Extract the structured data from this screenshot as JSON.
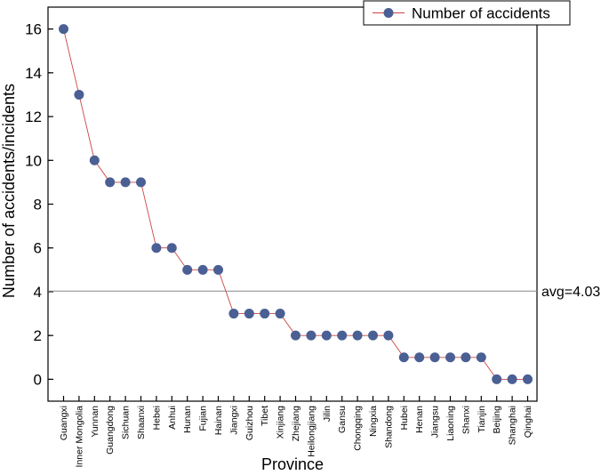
{
  "chart_data": {
    "type": "line",
    "title": "",
    "xlabel": "Province",
    "ylabel": "Number of accidents/incidents",
    "ylim": [
      -1,
      17
    ],
    "yticks": [
      0,
      2,
      4,
      6,
      8,
      10,
      12,
      14,
      16
    ],
    "legend_position": "top-right",
    "categories": [
      "Guangxi",
      "Inner Mongolia",
      "Yunnan",
      "Guangdong",
      "Sichuan",
      "Shaanxi",
      "Hebei",
      "Anhui",
      "Hunan",
      "Fujian",
      "Hainan",
      "Jiangxi",
      "Guizhou",
      "Tibet",
      "Xinjiang",
      "Zhejiang",
      "Heilongjiang",
      "Jilin",
      "Gansu",
      "Chongqing",
      "Ningxia",
      "Shandong",
      "Hubei",
      "Henan",
      "Jiangsu",
      "Liaoning",
      "Shanxi",
      "Tianjin",
      "Beijing",
      "Shanghai",
      "Qinghai"
    ],
    "series": [
      {
        "name": "Number of accidents",
        "values": [
          16,
          13,
          10,
          9,
          9,
          9,
          6,
          6,
          5,
          5,
          5,
          3,
          3,
          3,
          3,
          2,
          2,
          2,
          2,
          2,
          2,
          2,
          1,
          1,
          1,
          1,
          1,
          1,
          0,
          0,
          0
        ],
        "color": "#4a5f93",
        "line_color": "#cc4444"
      }
    ],
    "reference_line": {
      "value": 4.03,
      "label": "avg=4.03",
      "color": "#888888"
    }
  }
}
